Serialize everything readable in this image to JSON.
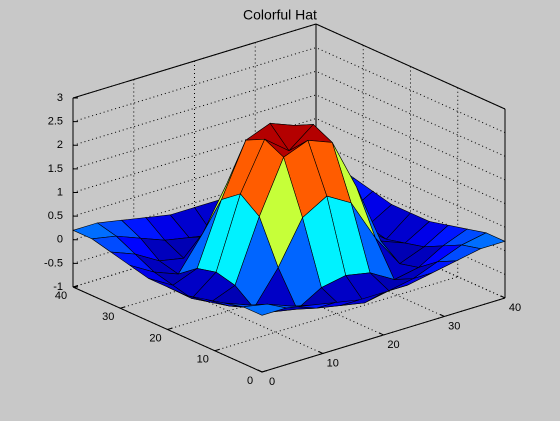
{
  "chart_data": {
    "type": "surface",
    "title": "Colorful Hat",
    "x": [
      0,
      4,
      8,
      12,
      16,
      20,
      24,
      28,
      32,
      36,
      40
    ],
    "y": [
      0,
      4,
      8,
      12,
      16,
      20,
      24,
      28,
      32,
      36,
      40
    ],
    "z": [
      [
        0.2,
        0.2,
        0.1,
        0.0,
        -0.1,
        -0.1,
        -0.1,
        0.0,
        0.1,
        0.2,
        0.2
      ],
      [
        0.2,
        0.1,
        -0.1,
        -0.3,
        -0.4,
        -0.5,
        -0.4,
        -0.3,
        -0.1,
        0.1,
        0.2
      ],
      [
        0.1,
        -0.1,
        -0.4,
        -0.5,
        -0.2,
        -0.1,
        -0.2,
        -0.5,
        -0.4,
        -0.1,
        0.1
      ],
      [
        0.0,
        -0.3,
        -0.5,
        0.2,
        1.1,
        1.4,
        1.1,
        0.2,
        -0.5,
        -0.3,
        0.0
      ],
      [
        -0.1,
        -0.4,
        -0.2,
        1.1,
        2.2,
        2.4,
        2.2,
        1.1,
        -0.2,
        -0.4,
        -0.1
      ],
      [
        -0.1,
        -0.5,
        -0.1,
        1.4,
        2.4,
        2.0,
        2.4,
        1.4,
        -0.1,
        -0.5,
        -0.1
      ],
      [
        -0.1,
        -0.4,
        -0.2,
        1.1,
        2.2,
        2.4,
        2.2,
        1.1,
        -0.2,
        -0.4,
        -0.1
      ],
      [
        0.0,
        -0.3,
        -0.5,
        0.2,
        1.1,
        1.4,
        1.1,
        0.2,
        -0.5,
        -0.3,
        0.0
      ],
      [
        0.1,
        -0.1,
        -0.4,
        -0.5,
        -0.2,
        -0.1,
        -0.2,
        -0.5,
        -0.4,
        -0.1,
        0.1
      ],
      [
        0.2,
        0.1,
        -0.1,
        -0.3,
        -0.4,
        -0.5,
        -0.4,
        -0.3,
        -0.1,
        0.1,
        0.2
      ],
      [
        0.2,
        0.2,
        0.1,
        0.0,
        -0.1,
        -0.1,
        -0.1,
        0.0,
        0.1,
        0.2,
        0.2
      ]
    ],
    "xlim": [
      0,
      40
    ],
    "ylim": [
      0,
      40
    ],
    "zlim": [
      -1,
      3
    ],
    "xticks": [
      0,
      10,
      20,
      30,
      40
    ],
    "yticks": [
      0,
      10,
      20,
      30,
      40
    ],
    "zticks": [
      -1,
      -0.5,
      0,
      0.5,
      1,
      1.5,
      2,
      2.5,
      3
    ],
    "grid": true,
    "colormap": "jet"
  }
}
